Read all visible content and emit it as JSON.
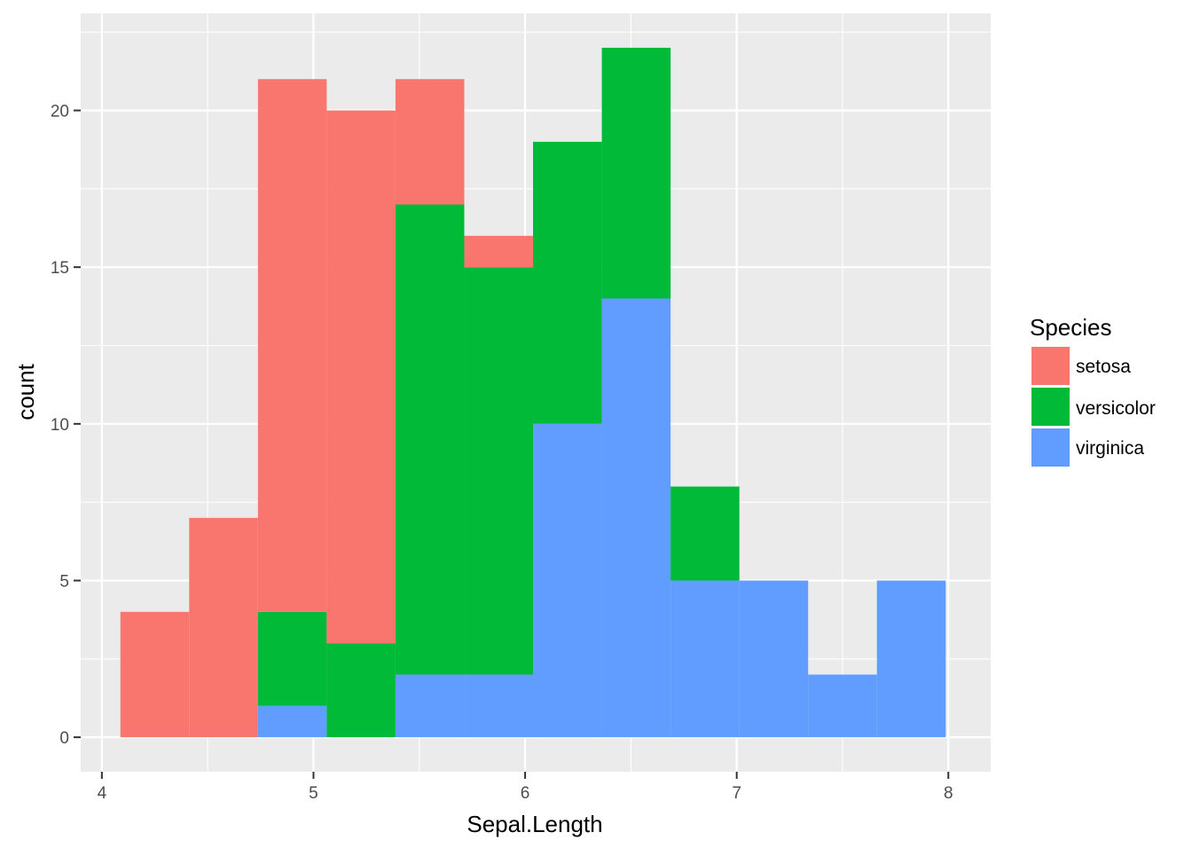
{
  "chart_data": {
    "type": "bar",
    "subtype": "stacked-histogram",
    "xlabel": "Sepal.Length",
    "ylabel": "count",
    "xlim": [
      3.9,
      8.2
    ],
    "ylim": [
      -1.1,
      23.1
    ],
    "x_ticks": [
      4,
      5,
      6,
      7,
      8
    ],
    "y_ticks": [
      0,
      5,
      10,
      15,
      20
    ],
    "grid": true,
    "legend": {
      "title": "Species",
      "position": "right",
      "entries": [
        "setosa",
        "versicolor",
        "virginica"
      ]
    },
    "bins": [
      [
        4.0875,
        4.4125
      ],
      [
        4.4125,
        4.7375
      ],
      [
        4.7375,
        5.0625
      ],
      [
        5.0625,
        5.3875
      ],
      [
        5.3875,
        5.7125
      ],
      [
        5.7125,
        6.0375
      ],
      [
        6.0375,
        6.3625
      ],
      [
        6.3625,
        6.6875
      ],
      [
        6.6875,
        7.0125
      ],
      [
        7.0125,
        7.3375
      ],
      [
        7.3375,
        7.6625
      ],
      [
        7.6625,
        7.9875
      ]
    ],
    "stack_order": [
      "virginica",
      "versicolor",
      "setosa"
    ],
    "series": [
      {
        "name": "setosa",
        "color": "#F8766D",
        "values": [
          4,
          7,
          17,
          17,
          4,
          1,
          0,
          0,
          0,
          0,
          0,
          0
        ]
      },
      {
        "name": "versicolor",
        "color": "#00BA38",
        "values": [
          0,
          0,
          3,
          3,
          15,
          13,
          9,
          8,
          3,
          0,
          0,
          0
        ]
      },
      {
        "name": "virginica",
        "color": "#619CFF",
        "values": [
          0,
          0,
          1,
          0,
          2,
          2,
          10,
          14,
          5,
          5,
          2,
          5
        ]
      }
    ],
    "colors": {
      "panel_background": "#EBEBEB",
      "grid_major": "#FFFFFF",
      "tick_label": "#4D4D4D"
    }
  }
}
